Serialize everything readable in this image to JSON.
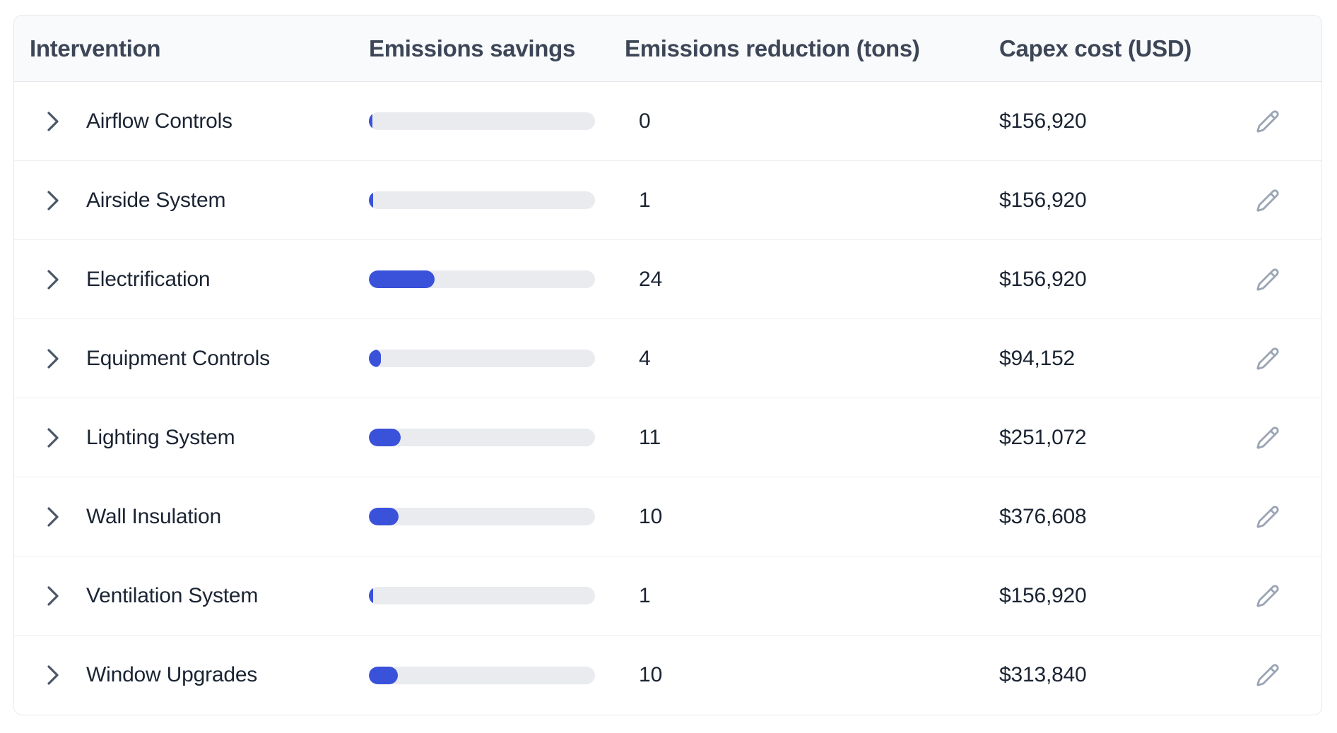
{
  "table": {
    "columns": [
      {
        "label": "Intervention"
      },
      {
        "label": "Emissions savings"
      },
      {
        "label": "Emissions reduction (tons)"
      },
      {
        "label": "Capex cost (USD)"
      }
    ],
    "rows": [
      {
        "intervention": "Airflow Controls",
        "savings_bar_pct": 1.2,
        "reduction_tons": "0",
        "capex_usd": "$156,920"
      },
      {
        "intervention": "Airside System",
        "savings_bar_pct": 1.9,
        "reduction_tons": "1",
        "capex_usd": "$156,920"
      },
      {
        "intervention": "Electrification",
        "savings_bar_pct": 29,
        "reduction_tons": "24",
        "capex_usd": "$156,920"
      },
      {
        "intervention": "Equipment Controls",
        "savings_bar_pct": 5.3,
        "reduction_tons": "4",
        "capex_usd": "$94,152"
      },
      {
        "intervention": "Lighting System",
        "savings_bar_pct": 14,
        "reduction_tons": "11",
        "capex_usd": "$251,072"
      },
      {
        "intervention": "Wall Insulation",
        "savings_bar_pct": 13,
        "reduction_tons": "10",
        "capex_usd": "$376,608"
      },
      {
        "intervention": "Ventilation System",
        "savings_bar_pct": 1.9,
        "reduction_tons": "1",
        "capex_usd": "$156,920"
      },
      {
        "intervention": "Window Upgrades",
        "savings_bar_pct": 12.8,
        "reduction_tons": "10",
        "capex_usd": "$313,840"
      }
    ]
  },
  "colors": {
    "bar_fill": "#3a51d9",
    "bar_track": "#e9ebef",
    "header_bg": "#f8fafc",
    "header_text": "#3d4657",
    "cell_text": "#1b2433",
    "chevron": "#4b5768",
    "pencil": "#9ba5b5",
    "row_divider": "#edeff3",
    "card_border": "#e6e8ed"
  },
  "icons": {
    "expand": "chevron-right-icon",
    "edit": "pencil-icon"
  }
}
